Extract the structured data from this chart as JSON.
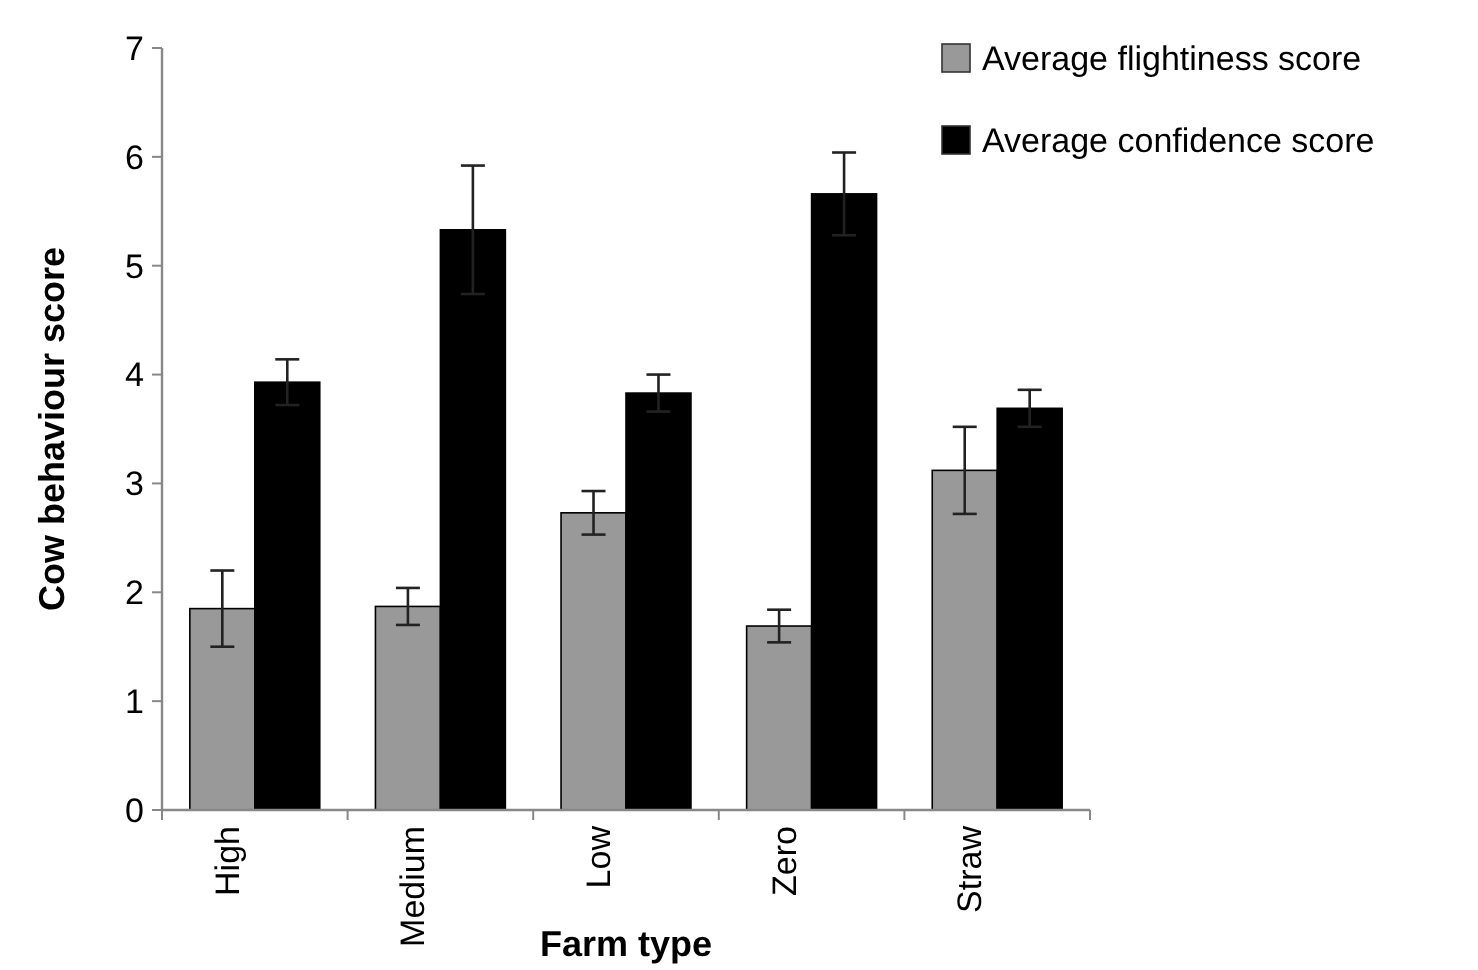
{
  "chart_data": {
    "type": "bar",
    "xlabel": "Farm type",
    "ylabel": "Cow behaviour score",
    "categories": [
      "High",
      "Medium",
      "Low",
      "Zero",
      "Straw"
    ],
    "series": [
      {
        "name": "Average flightiness score",
        "color": "#999999",
        "values": [
          1.85,
          1.87,
          2.73,
          1.69,
          3.12
        ],
        "errors": [
          0.35,
          0.17,
          0.2,
          0.15,
          0.4
        ]
      },
      {
        "name": "Average confidence score",
        "color": "#000000",
        "values": [
          3.93,
          5.33,
          3.83,
          5.66,
          3.69
        ],
        "errors": [
          0.21,
          0.59,
          0.17,
          0.38,
          0.17
        ]
      }
    ],
    "ylim": [
      0,
      7
    ],
    "yticks": [
      0,
      1,
      2,
      3,
      4,
      5,
      6,
      7
    ],
    "grid": false,
    "legend": "top right"
  }
}
